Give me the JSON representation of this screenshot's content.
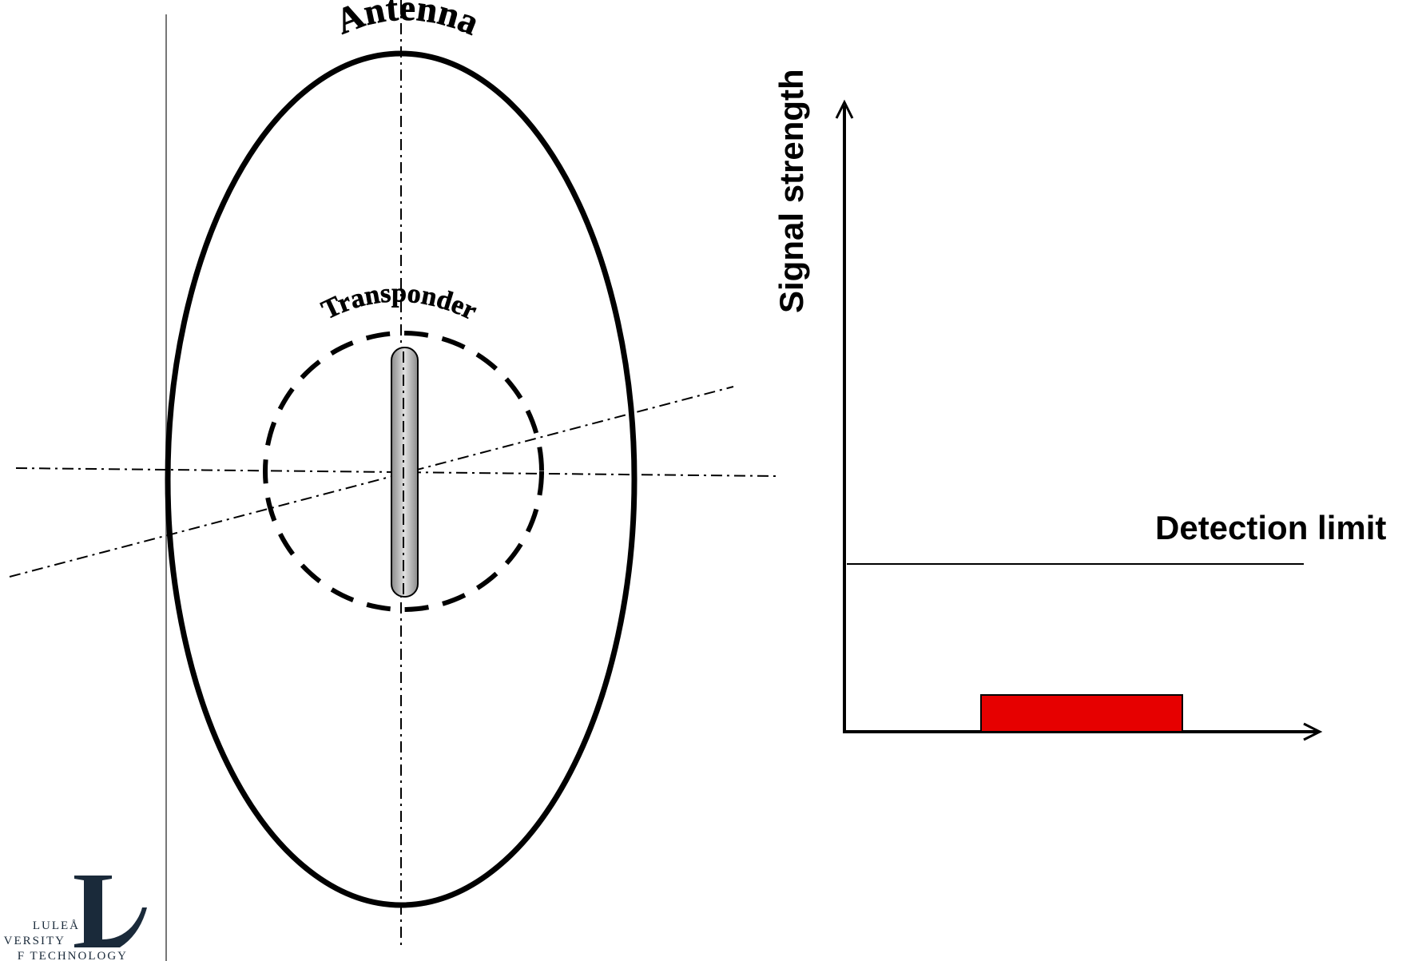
{
  "labels": {
    "antenna": "Antenna",
    "transponder": "Transponder",
    "signal_strength": "Signal strength",
    "detection_limit": "Detection limit"
  },
  "logo": {
    "letter": "L",
    "line1": "LULEÅ",
    "line2": "VERSITY",
    "line3": "F TECHNOLOGY"
  },
  "colors": {
    "signal_bar": "#e60000",
    "stroke": "#000000",
    "transponder_fill": "#b0b0b0",
    "logo": "#1a2a3a"
  }
}
